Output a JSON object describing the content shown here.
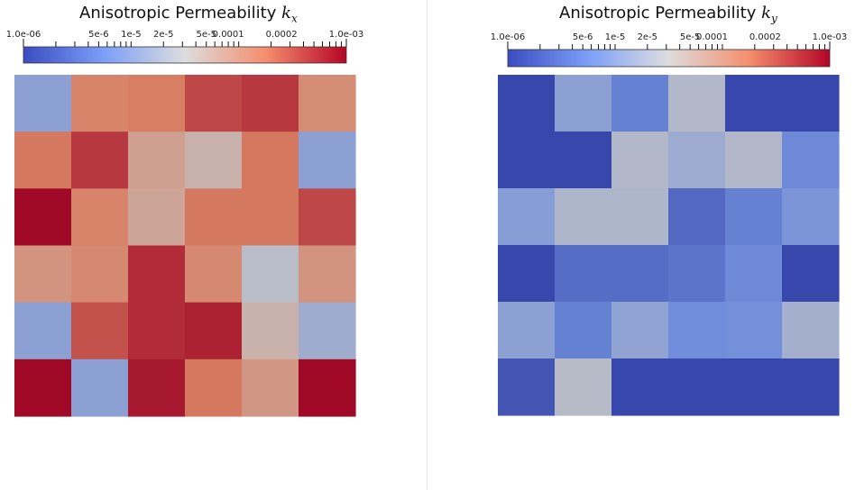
{
  "chart_data": [
    {
      "type": "heatmap",
      "title_main": "Anisotropic Permeability",
      "title_symbol": "k",
      "title_subscript": "x",
      "colorbar": {
        "scale": "log",
        "range": [
          1e-06,
          0.001
        ],
        "min_label": "1.0e-06",
        "max_label": "1.0e-03",
        "tick_labels": [
          {
            "value": 5e-06,
            "label": "5e-6"
          },
          {
            "value": 1e-05,
            "label": "1e-5"
          },
          {
            "value": 2e-05,
            "label": "2e-5"
          },
          {
            "value": 5e-05,
            "label": "5e-5"
          },
          {
            "value": 0.0001,
            "label": "0.0001"
          },
          {
            "value": 0.0002,
            "label": "0.0002"
          }
        ]
      },
      "rows": 6,
      "cols": 6,
      "values": [
        [
          1e-05,
          0.00016,
          0.00018,
          0.0004,
          0.0005,
          0.00013
        ],
        [
          0.0002,
          0.0005,
          8e-05,
          5e-05,
          0.0002,
          1e-05
        ],
        [
          0.001,
          0.00016,
          7e-05,
          0.0002,
          0.0002,
          0.0004
        ],
        [
          0.00011,
          0.00014,
          0.0006,
          0.00014,
          2.5e-05,
          0.00011
        ],
        [
          1e-05,
          0.00035,
          0.0006,
          0.0007,
          5e-05,
          1.5e-05
        ],
        [
          0.001,
          1e-05,
          0.0008,
          0.0002,
          0.0001,
          0.001
        ]
      ]
    },
    {
      "type": "heatmap",
      "title_main": "Anisotropic Permeability",
      "title_symbol": "k",
      "title_subscript": "y",
      "colorbar": {
        "scale": "log",
        "range": [
          1e-06,
          0.001
        ],
        "min_label": "1.0e-06",
        "max_label": "1.0e-03",
        "tick_labels": [
          {
            "value": 5e-06,
            "label": "5e-6"
          },
          {
            "value": 1e-05,
            "label": "1e-5"
          },
          {
            "value": 2e-05,
            "label": "2e-5"
          },
          {
            "value": 5e-05,
            "label": "5e-5"
          },
          {
            "value": 0.0001,
            "label": "0.0001"
          },
          {
            "value": 0.0002,
            "label": "0.0002"
          }
        ]
      },
      "rows": 6,
      "cols": 6,
      "values": [
        [
          1e-06,
          1e-05,
          4e-06,
          2.2e-05,
          1e-06,
          1e-06
        ],
        [
          1e-06,
          1e-06,
          2.2e-05,
          1.4e-05,
          2.2e-05,
          5e-06
        ],
        [
          9e-06,
          2e-05,
          2e-05,
          2.2e-06,
          4e-06,
          7e-06
        ],
        [
          1e-06,
          2.5e-06,
          2.5e-06,
          3e-06,
          5e-06,
          1e-06
        ],
        [
          1e-05,
          4e-06,
          1.1e-05,
          5.5e-06,
          6e-06,
          1.6e-05
        ],
        [
          1.4e-06,
          2.4e-05,
          1e-06,
          1e-06,
          1e-06,
          1e-06
        ]
      ]
    }
  ]
}
